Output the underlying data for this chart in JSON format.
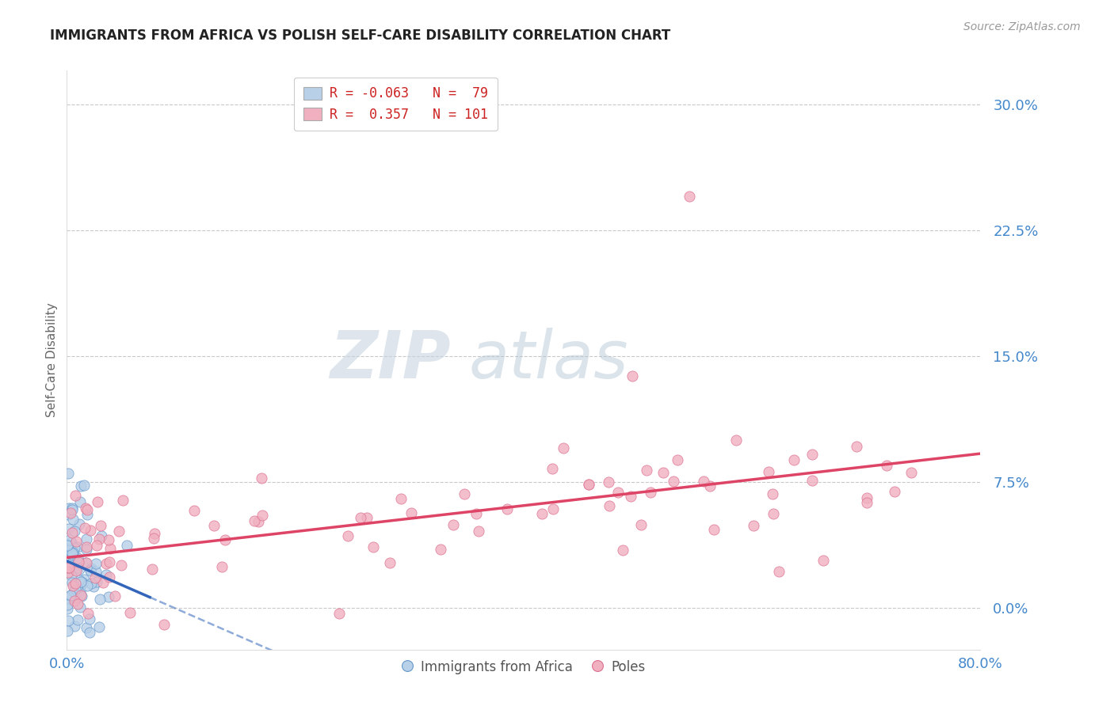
{
  "title": "IMMIGRANTS FROM AFRICA VS POLISH SELF-CARE DISABILITY CORRELATION CHART",
  "source": "Source: ZipAtlas.com",
  "ylabel": "Self-Care Disability",
  "ytick_values": [
    0.0,
    0.075,
    0.15,
    0.225,
    0.3
  ],
  "xmin": 0.0,
  "xmax": 0.8,
  "ymin": -0.025,
  "ymax": 0.32,
  "series_africa": {
    "color": "#b8d0e8",
    "edge_color": "#6699cc",
    "line_color": "#3366bb",
    "R": -0.063,
    "N": 79
  },
  "series_poles": {
    "color": "#f0b0c0",
    "edge_color": "#dd7090",
    "line_color": "#dd4466",
    "R": 0.357,
    "N": 101
  },
  "background_color": "#ffffff",
  "grid_color": "#bbbbbb",
  "tick_label_color": "#4488cc",
  "title_color": "#222222",
  "source_color": "#999999",
  "legend_r_color": "#cc2222",
  "legend_n_color": "#3366bb",
  "watermark_zip_color": "#c8d4e0",
  "watermark_atlas_color": "#b0c4d4"
}
